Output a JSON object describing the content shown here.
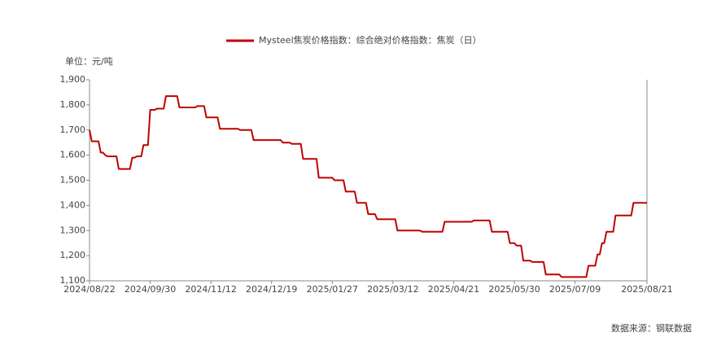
{
  "chart_data": {
    "type": "line",
    "legend_label_unit": "单位：元/吨",
    "source": "数据来源：钢联数据",
    "step": true,
    "x": [
      0,
      1,
      4,
      5,
      6,
      7,
      8,
      12,
      13,
      18,
      19,
      20,
      21,
      23,
      24,
      26,
      27,
      29,
      30,
      33,
      34,
      39,
      40,
      47,
      48,
      51,
      52,
      57,
      58,
      66,
      67,
      72,
      73,
      85,
      86,
      89,
      90,
      94,
      95,
      101,
      102,
      108,
      109,
      113,
      114,
      118,
      119,
      123,
      124,
      127,
      128,
      136,
      137,
      147,
      148,
      157,
      158,
      170,
      171,
      178,
      179,
      186,
      187,
      189,
      190,
      192,
      193,
      196,
      197,
      202,
      203,
      209,
      210,
      221,
      222,
      225,
      226,
      227,
      228,
      229,
      230,
      233,
      234,
      241,
      242,
      248
    ],
    "series": [
      {
        "name": "Mysteel焦炭价格指数：综合绝对价格指数：焦炭（日）",
        "color": "#c00000",
        "values": [
          1700,
          1655,
          1655,
          1610,
          1610,
          1600,
          1595,
          1595,
          1545,
          1545,
          1590,
          1590,
          1595,
          1595,
          1640,
          1640,
          1780,
          1780,
          1785,
          1785,
          1835,
          1835,
          1790,
          1790,
          1795,
          1795,
          1750,
          1750,
          1705,
          1705,
          1700,
          1700,
          1660,
          1660,
          1650,
          1650,
          1645,
          1645,
          1585,
          1585,
          1510,
          1510,
          1500,
          1500,
          1455,
          1455,
          1410,
          1410,
          1365,
          1365,
          1345,
          1345,
          1300,
          1300,
          1295,
          1295,
          1335,
          1335,
          1340,
          1340,
          1295,
          1295,
          1250,
          1250,
          1240,
          1240,
          1180,
          1180,
          1175,
          1175,
          1125,
          1125,
          1115,
          1115,
          1160,
          1160,
          1205,
          1205,
          1250,
          1250,
          1295,
          1295,
          1360,
          1360,
          1410,
          1410
        ]
      }
    ],
    "xlim": [
      0,
      248
    ],
    "xticks": [
      {
        "value": 0,
        "label": "2024/08/22"
      },
      {
        "value": 27,
        "label": "2024/09/30"
      },
      {
        "value": 54,
        "label": "2024/11/12"
      },
      {
        "value": 81,
        "label": "2024/12/19"
      },
      {
        "value": 108,
        "label": "2025/01/27"
      },
      {
        "value": 135,
        "label": "2025/03/12"
      },
      {
        "value": 162,
        "label": "2025/04/21"
      },
      {
        "value": 189,
        "label": "2025/05/30"
      },
      {
        "value": 216,
        "label": "2025/07/09"
      },
      {
        "value": 248,
        "label": "2025/08/21"
      }
    ],
    "ylim": [
      1100,
      1900
    ],
    "yticks": [
      {
        "value": 1100,
        "label": "1,100"
      },
      {
        "value": 1200,
        "label": "1,200"
      },
      {
        "value": 1300,
        "label": "1,300"
      },
      {
        "value": 1400,
        "label": "1,400"
      },
      {
        "value": 1500,
        "label": "1,500"
      },
      {
        "value": 1600,
        "label": "1,600"
      },
      {
        "value": 1700,
        "label": "1,700"
      },
      {
        "value": 1800,
        "label": "1,800"
      },
      {
        "value": 1900,
        "label": "1,900"
      }
    ],
    "grid": false
  }
}
